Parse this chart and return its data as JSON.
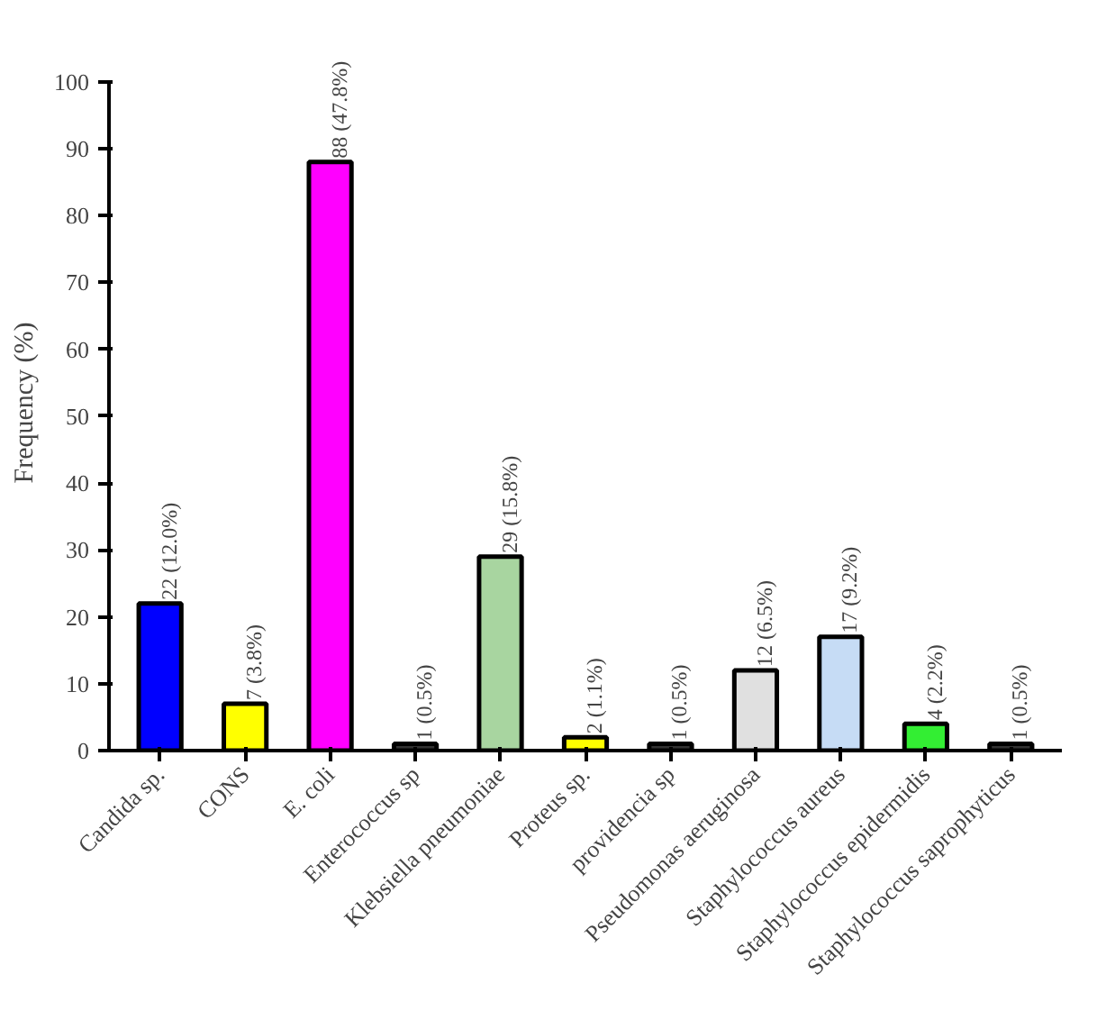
{
  "chart_data": {
    "type": "bar",
    "ylabel": "Frequency (%)",
    "categories": [
      "Candida sp.",
      "CONS",
      "E. coli",
      "Enterococcus sp",
      "Klebsiella pneumoniae",
      "Proteus sp.",
      "providencia sp",
      "Pseudomonas aeruginosa",
      "Staphylococcus aureus",
      "Staphylococcus epidermidis",
      "Staphylococcus saprophyticus"
    ],
    "values": [
      22,
      7,
      88,
      1,
      29,
      2,
      1,
      12,
      17,
      4,
      1
    ],
    "colors": [
      "#0000ff",
      "#ffff00",
      "#ff00ff",
      "#333333",
      "#a8d5a0",
      "#ffff00",
      "#333333",
      "#e0e0e0",
      "#c6dcf5",
      "#33ee33",
      "#333333"
    ],
    "value_labels": [
      "22 (12.0%)",
      "7 (3.8%)",
      "88 (47.8%)",
      "1 (0.5%)",
      "29 (15.8%)",
      "2 (1.1%)",
      "1 (0.5%)",
      "12 (6.5%)",
      "17 (9.2%)",
      "4 (2.2%)",
      "1 (0.5%)"
    ],
    "ylim": [
      0,
      100
    ],
    "yticks": [
      0,
      10,
      20,
      30,
      40,
      50,
      60,
      70,
      80,
      90,
      100
    ],
    "grid": false
  }
}
